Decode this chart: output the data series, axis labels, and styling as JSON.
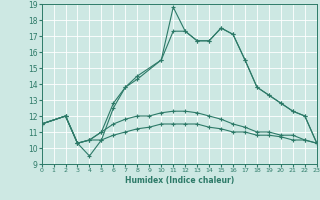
{
  "xlabel": "Humidex (Indice chaleur)",
  "xlim": [
    0,
    23
  ],
  "ylim": [
    9,
    19
  ],
  "xticks": [
    0,
    1,
    2,
    3,
    4,
    5,
    6,
    7,
    8,
    9,
    10,
    11,
    12,
    13,
    14,
    15,
    16,
    17,
    18,
    19,
    20,
    21,
    22,
    23
  ],
  "yticks": [
    9,
    10,
    11,
    12,
    13,
    14,
    15,
    16,
    17,
    18,
    19
  ],
  "bg_color": "#cde8e3",
  "line_color": "#2d7a68",
  "grid_color": "#ffffff",
  "series": [
    {
      "x": [
        0,
        2,
        3,
        4,
        5,
        6,
        7,
        8,
        9,
        10,
        11,
        12,
        13,
        14,
        15,
        16,
        17,
        18,
        19,
        20,
        21,
        22,
        23
      ],
      "y": [
        11.5,
        12.0,
        10.3,
        10.5,
        10.5,
        10.8,
        11.0,
        11.2,
        11.3,
        11.5,
        11.5,
        11.5,
        11.5,
        11.3,
        11.2,
        11.0,
        11.0,
        10.8,
        10.8,
        10.7,
        10.5,
        10.5,
        10.3
      ]
    },
    {
      "x": [
        0,
        2,
        3,
        4,
        5,
        6,
        7,
        8,
        9,
        10,
        11,
        12,
        13,
        14,
        15,
        16,
        17,
        18,
        19,
        20,
        21,
        22,
        23
      ],
      "y": [
        11.5,
        12.0,
        10.3,
        10.5,
        11.0,
        11.5,
        11.8,
        12.0,
        12.0,
        12.2,
        12.3,
        12.3,
        12.2,
        12.0,
        11.8,
        11.5,
        11.3,
        11.0,
        11.0,
        10.8,
        10.8,
        10.5,
        10.3
      ]
    },
    {
      "x": [
        0,
        2,
        3,
        4,
        5,
        6,
        7,
        8,
        10,
        11,
        12,
        13,
        14,
        15,
        16,
        17,
        18,
        19,
        20,
        21,
        22,
        23
      ],
      "y": [
        11.5,
        12.0,
        10.3,
        9.5,
        10.5,
        12.5,
        13.8,
        14.5,
        15.5,
        18.8,
        17.3,
        16.7,
        16.7,
        17.5,
        17.1,
        15.5,
        13.8,
        13.3,
        12.8,
        12.3,
        12.0,
        10.3
      ]
    },
    {
      "x": [
        0,
        2,
        3,
        4,
        5,
        6,
        7,
        8,
        10,
        11,
        12,
        13,
        14,
        15,
        16,
        17,
        18,
        19,
        20,
        21,
        22,
        23
      ],
      "y": [
        11.5,
        12.0,
        10.3,
        10.5,
        11.0,
        12.8,
        13.8,
        14.3,
        15.5,
        17.3,
        17.3,
        16.7,
        16.7,
        17.5,
        17.1,
        15.5,
        13.8,
        13.3,
        12.8,
        12.3,
        12.0,
        10.3
      ]
    }
  ]
}
